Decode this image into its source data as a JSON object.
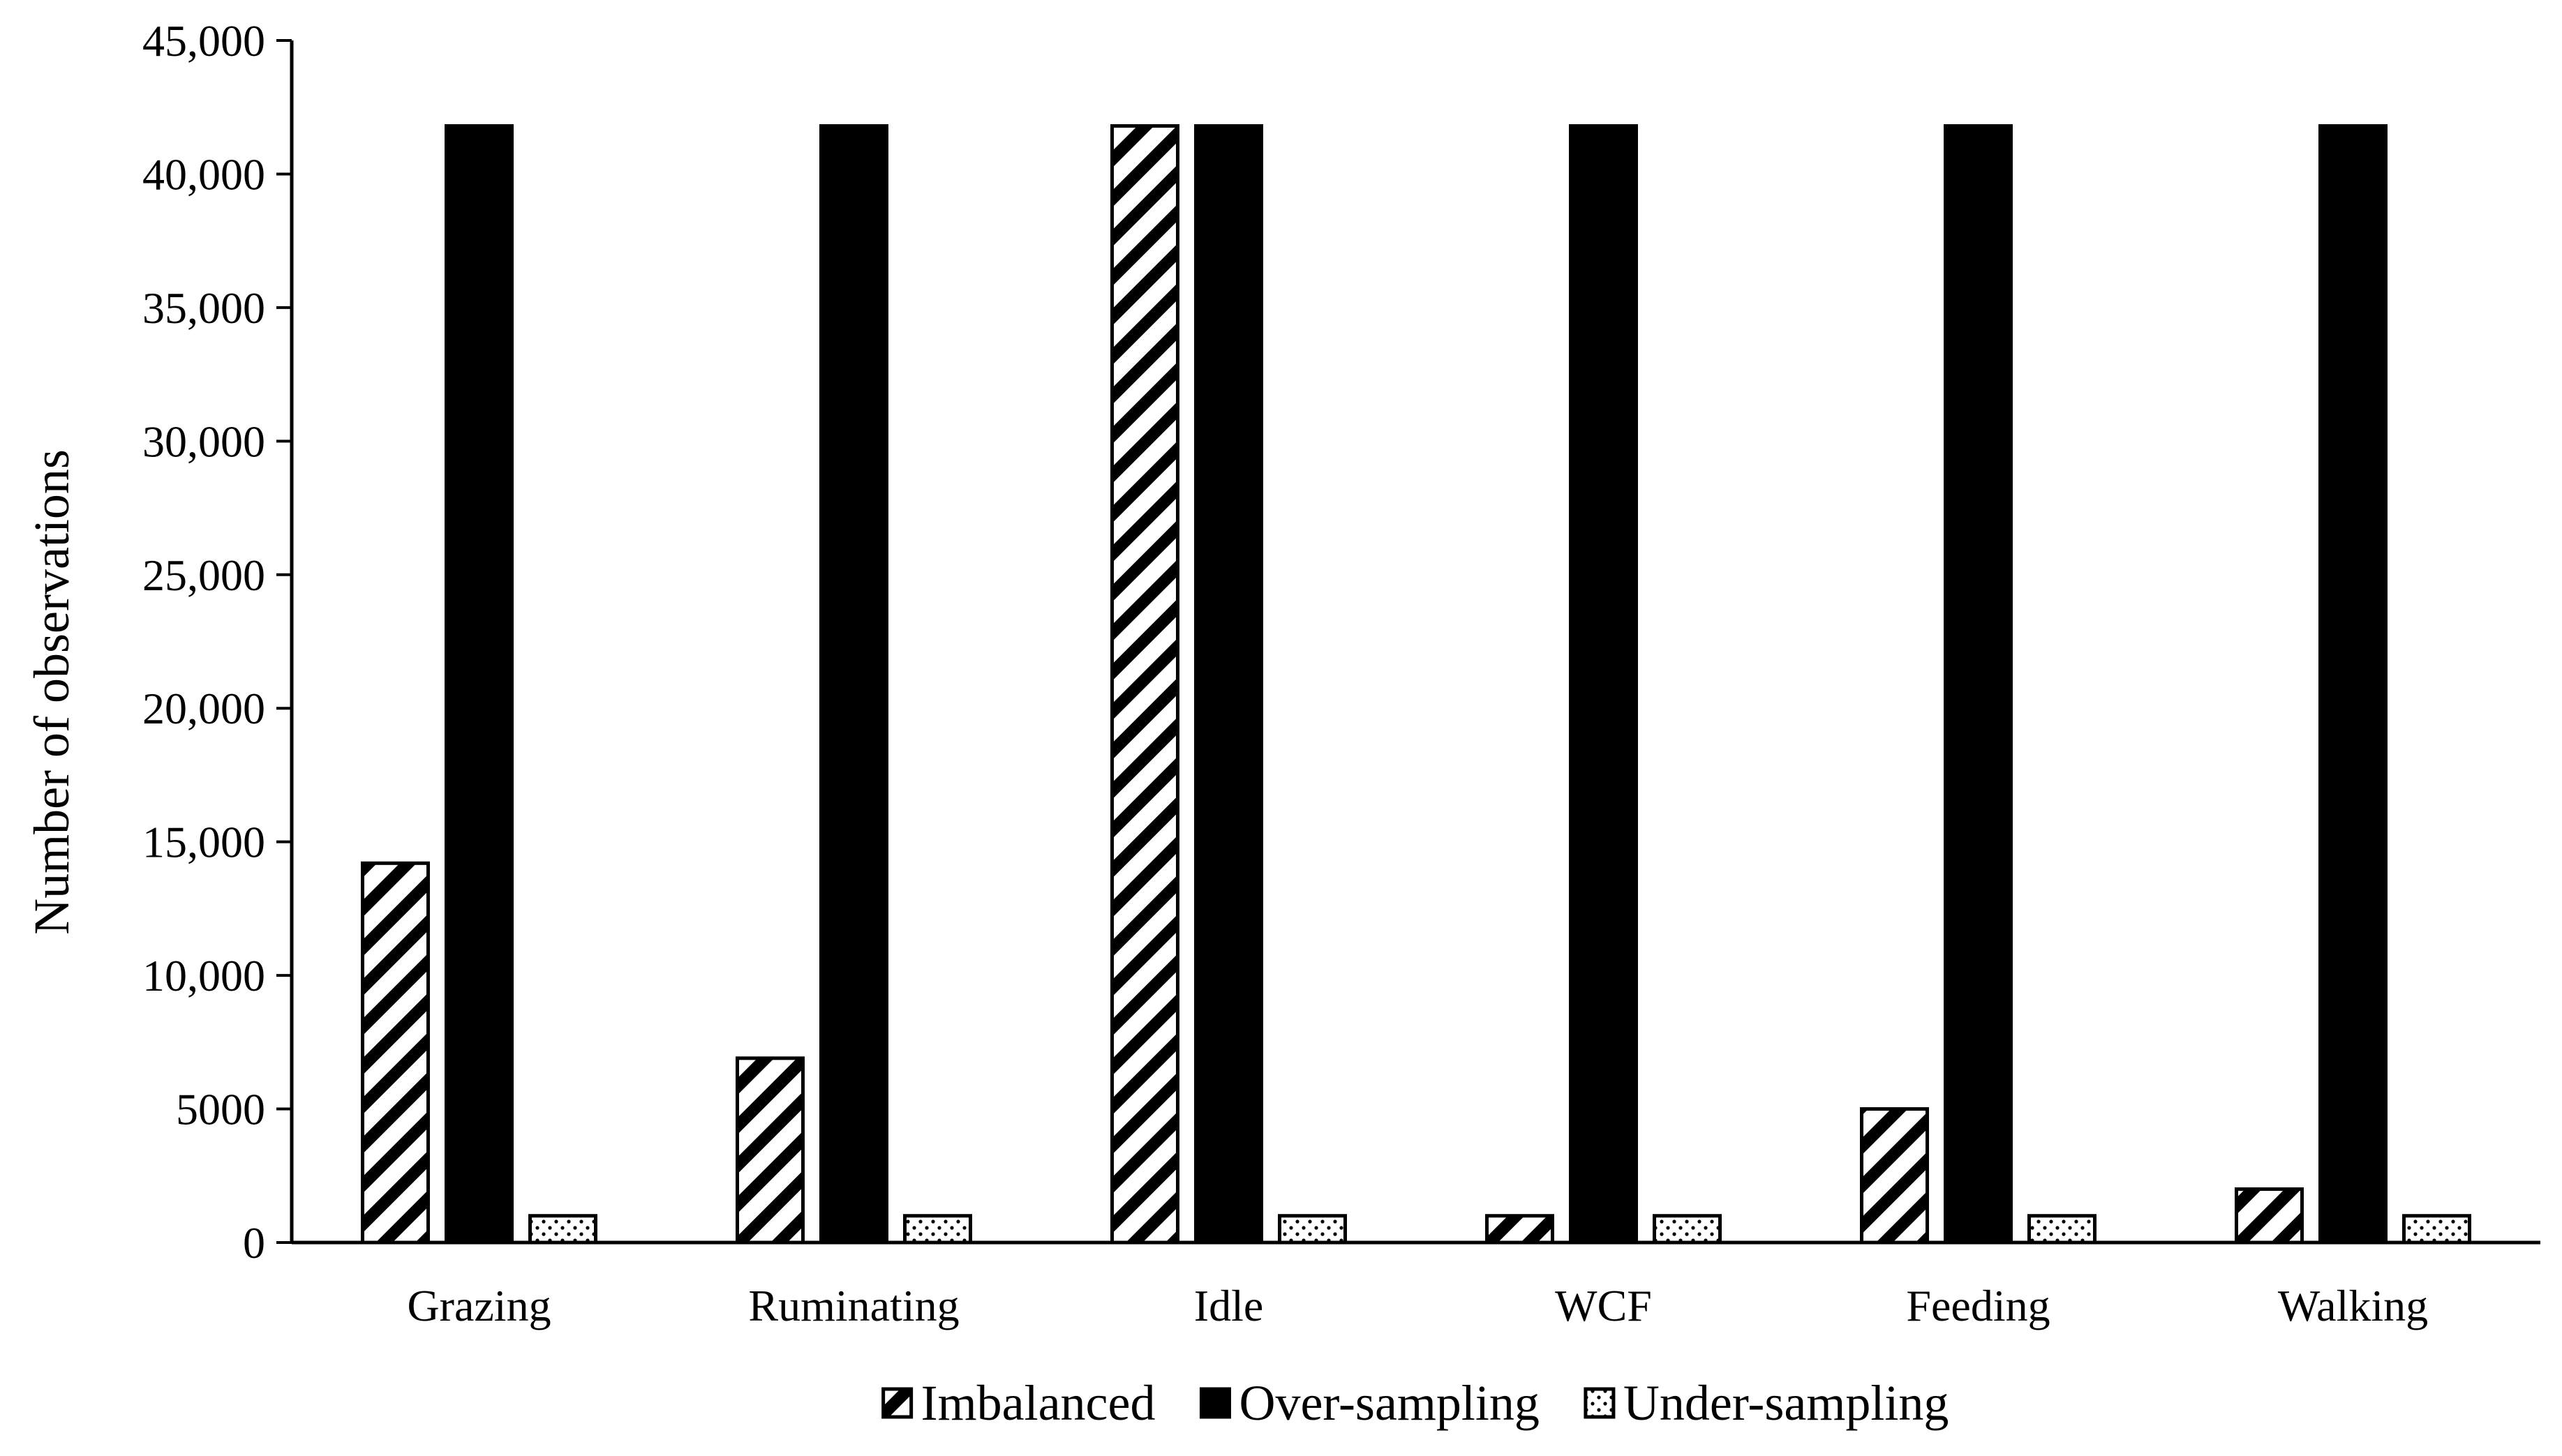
{
  "chart_data": {
    "type": "bar",
    "title": "",
    "xlabel": "",
    "ylabel": "Number of observations",
    "ylim": [
      0,
      45000
    ],
    "yticks": [
      0,
      5000,
      10000,
      15000,
      20000,
      25000,
      30000,
      35000,
      40000,
      45000
    ],
    "ytick_labels": [
      "0",
      "5000",
      "10,000",
      "15,000",
      "20,000",
      "25,000",
      "30,000",
      "35,000",
      "40,000",
      "45,000"
    ],
    "grid": false,
    "legend_position": "bottom",
    "categories": [
      "Grazing",
      "Ruminating",
      "Idle",
      "WCF",
      "Feeding",
      "Walking"
    ],
    "series": [
      {
        "name": "Imbalanced",
        "pattern": "diagonal-hatch",
        "values": [
          14200,
          6900,
          41800,
          1000,
          5000,
          2000
        ]
      },
      {
        "name": "Over-sampling",
        "pattern": "solid",
        "values": [
          41800,
          41800,
          41800,
          41800,
          41800,
          41800
        ]
      },
      {
        "name": "Under-sampling",
        "pattern": "dots",
        "values": [
          1000,
          1000,
          1000,
          1000,
          1000,
          1000
        ]
      }
    ],
    "colors": {
      "ink": "#000000",
      "background": "#ffffff"
    }
  }
}
